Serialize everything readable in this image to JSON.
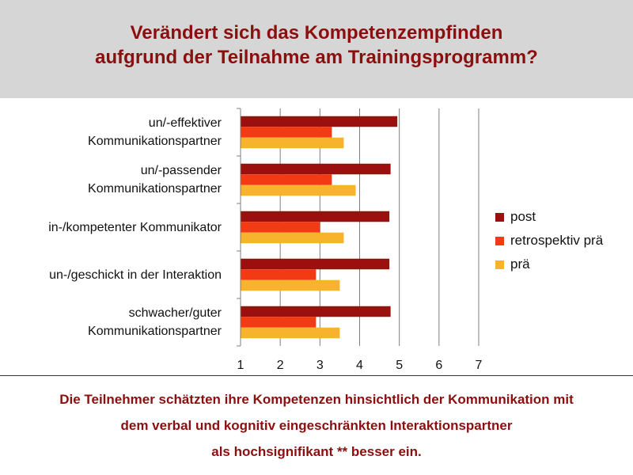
{
  "header": {
    "title_line1": "Verändert sich das Kompetenzempfinden",
    "title_line2": "aufgrund der Teilnahme am Trainingsprogramm?"
  },
  "footer": {
    "line1": "Die Teilnehmer schätzten ihre Kompetenzen hinsichtlich der Kommunikation mit",
    "line2": "dem verbal und kognitiv eingeschränkten Interaktionspartner",
    "line3": "als hochsignifikant ** besser ein."
  },
  "colors": {
    "title": "#8b0f0f",
    "header_bg": "#d6d6d6",
    "post": "#9c0f0f",
    "retro": "#f23b14",
    "pre": "#f7b32b"
  },
  "chart_data": {
    "type": "bar",
    "orientation": "horizontal",
    "categories": [
      [
        "un/-effektiver",
        "Kommunikationspartner"
      ],
      [
        "un/-passender",
        "Kommunikationspartner"
      ],
      [
        "in-/kompetenter Kommunikator"
      ],
      [
        "un-/geschickt in der Interaktion"
      ],
      [
        "schwacher/guter",
        "Kommunikationspartner"
      ]
    ],
    "series": [
      {
        "name": "post",
        "color": "#9c0f0f",
        "values": [
          4.95,
          4.78,
          4.75,
          4.75,
          4.78
        ]
      },
      {
        "name": "retrospektiv prä",
        "color": "#f23b14",
        "values": [
          3.3,
          3.3,
          3.0,
          2.9,
          2.9
        ]
      },
      {
        "name": "prä",
        "color": "#f7b32b",
        "values": [
          3.6,
          3.9,
          3.6,
          3.5,
          3.5
        ]
      }
    ],
    "xlim": [
      1,
      7
    ],
    "xticks": [
      "1",
      "2",
      "3",
      "4",
      "5",
      "6",
      "7"
    ],
    "grid": true,
    "legend": "right"
  }
}
